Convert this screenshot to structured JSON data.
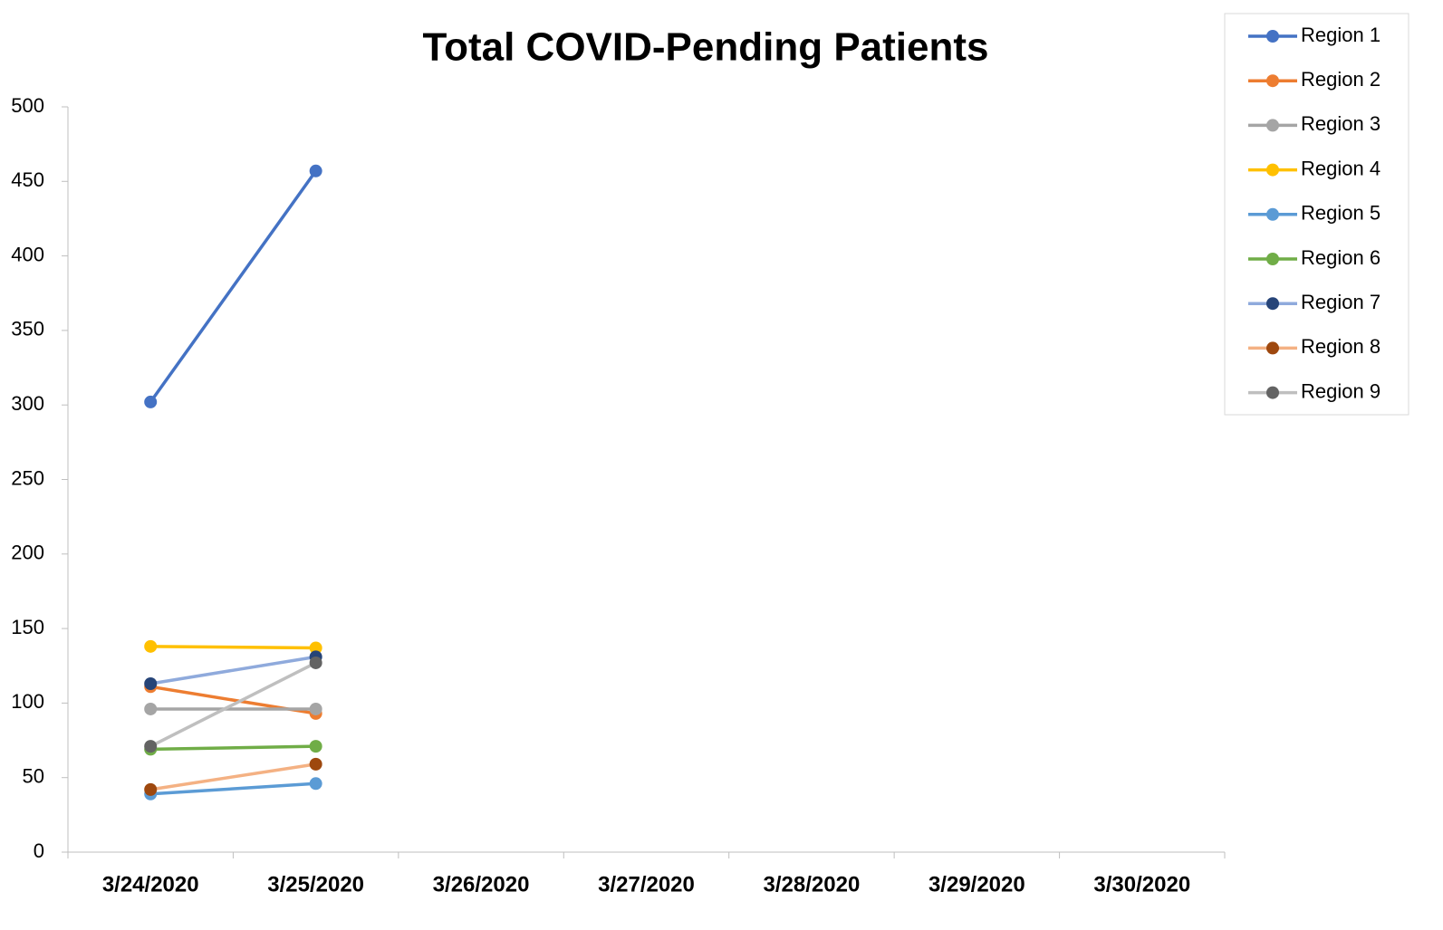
{
  "chart_data": {
    "type": "line",
    "title": "Total COVID-Pending Patients",
    "categories": [
      "3/24/2020",
      "3/25/2020",
      "3/26/2020",
      "3/27/2020",
      "3/28/2020",
      "3/29/2020",
      "3/30/2020"
    ],
    "series": [
      {
        "name": "Region 1",
        "color": "#4472c4",
        "values": [
          302,
          457,
          null,
          null,
          null,
          null,
          null
        ]
      },
      {
        "name": "Region 2",
        "color": "#ed7d31",
        "values": [
          111,
          93,
          null,
          null,
          null,
          null,
          null
        ]
      },
      {
        "name": "Region 3",
        "color": "#a5a5a5",
        "values": [
          96,
          96,
          null,
          null,
          null,
          null,
          null
        ]
      },
      {
        "name": "Region 4",
        "color": "#ffc000",
        "values": [
          138,
          137,
          null,
          null,
          null,
          null,
          null
        ]
      },
      {
        "name": "Region 5",
        "color": "#5b9bd5",
        "values": [
          39,
          46,
          null,
          null,
          null,
          null,
          null
        ]
      },
      {
        "name": "Region 6",
        "color": "#70ad47",
        "values": [
          69,
          71,
          null,
          null,
          null,
          null,
          null
        ]
      },
      {
        "name": "Region 7",
        "color": "#8faadc",
        "marker_color": "#264478",
        "values": [
          113,
          131,
          null,
          null,
          null,
          null,
          null
        ]
      },
      {
        "name": "Region 8",
        "color": "#f4b183",
        "marker_color": "#9e480e",
        "values": [
          42,
          59,
          null,
          null,
          null,
          null,
          null
        ]
      },
      {
        "name": "Region 9",
        "color": "#bfbfbf",
        "marker_color": "#636363",
        "values": [
          71,
          127,
          null,
          null,
          null,
          null,
          null
        ]
      }
    ],
    "ylim": [
      0,
      500
    ],
    "yticks": [
      0,
      50,
      100,
      150,
      200,
      250,
      300,
      350,
      400,
      450,
      500
    ],
    "grid": false,
    "legend": "upper right"
  }
}
